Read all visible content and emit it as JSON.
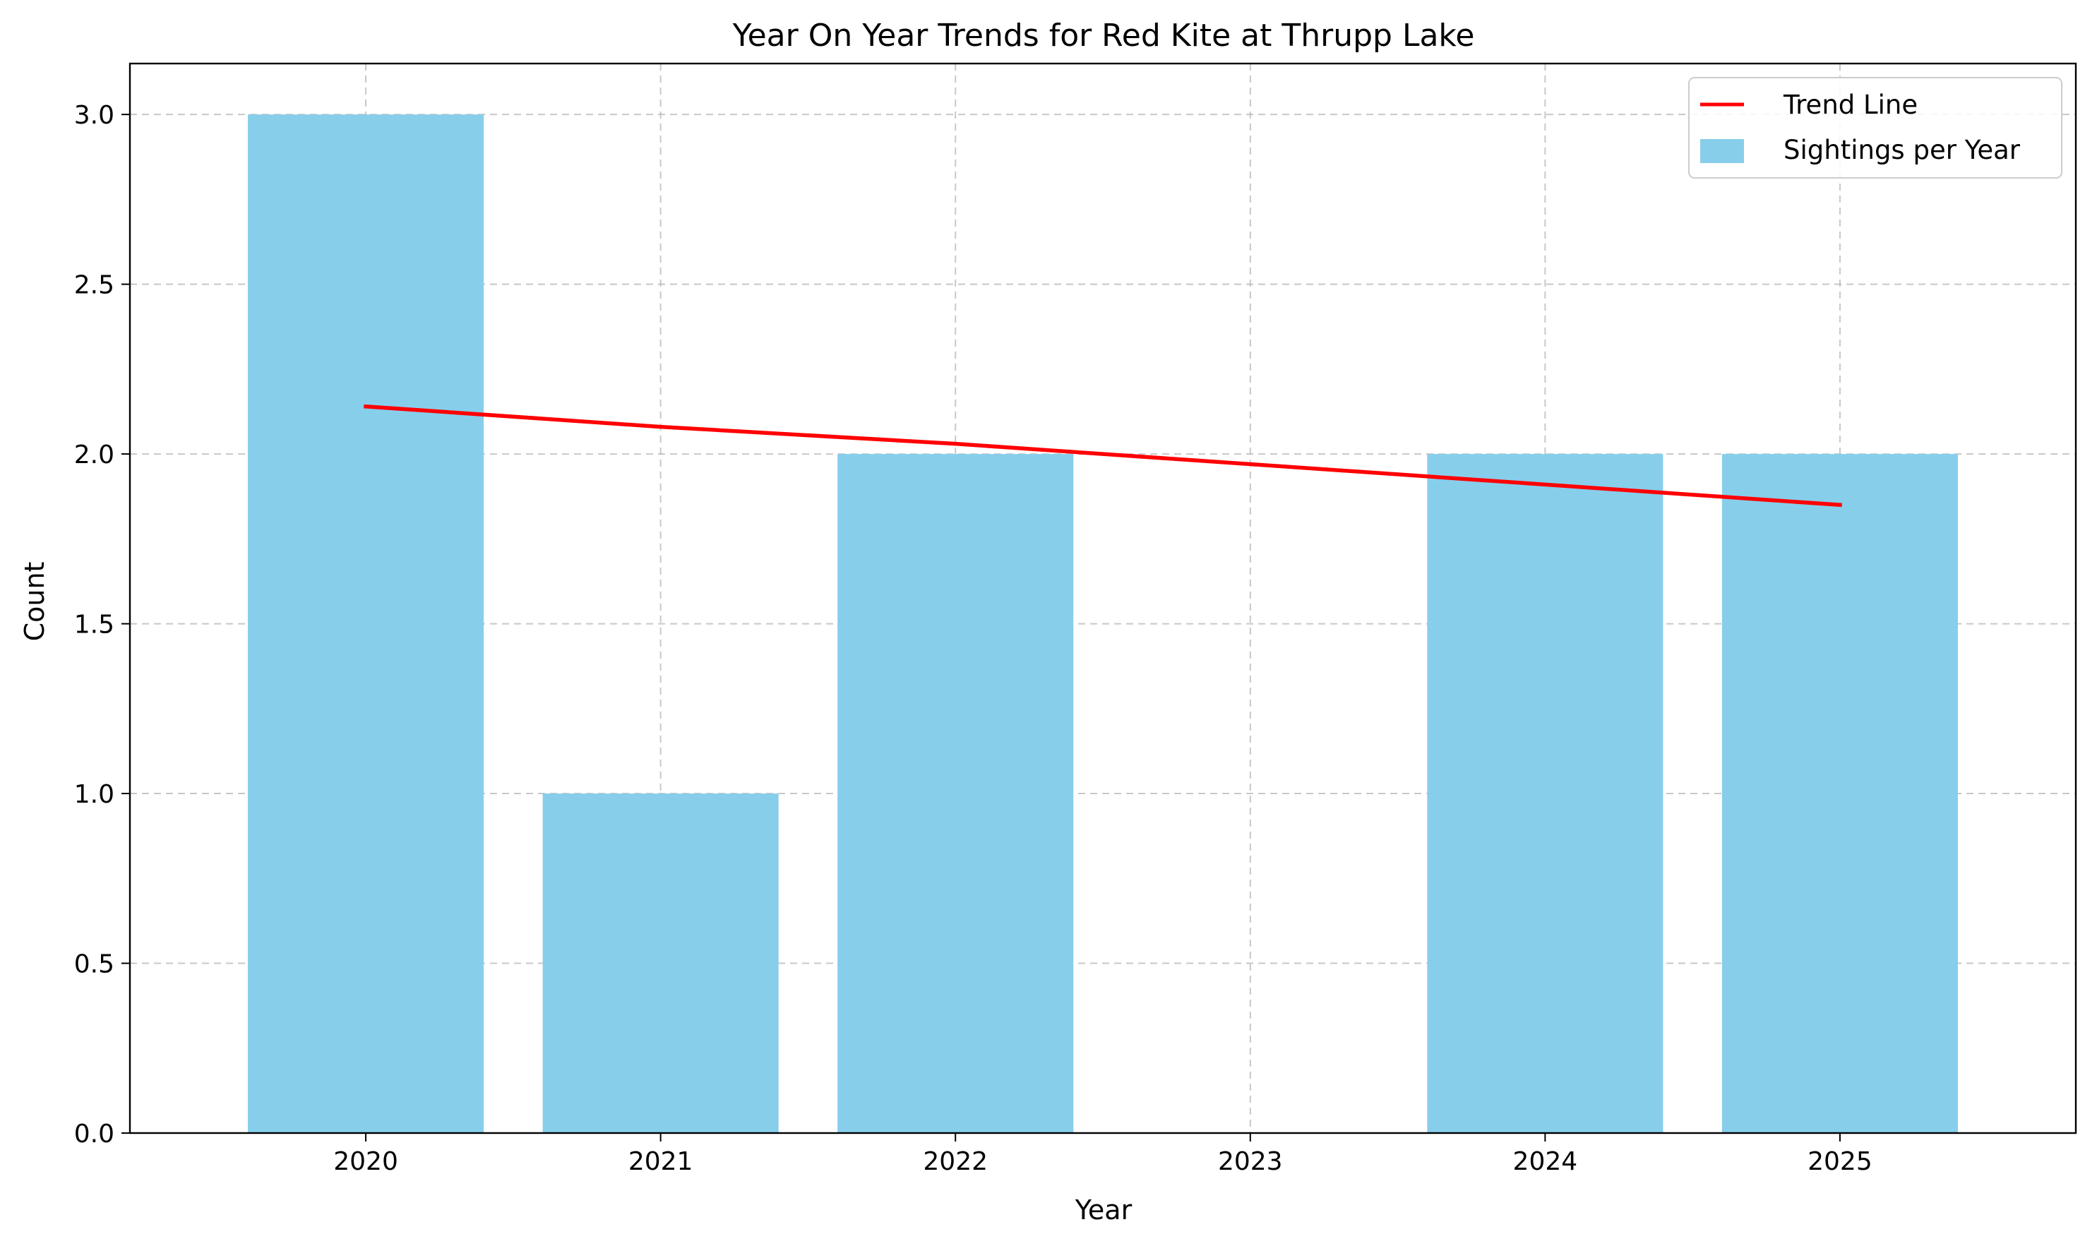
{
  "chart_data": {
    "type": "bar",
    "title": "Year On Year Trends for Red Kite at Thrupp Lake",
    "xlabel": "Year",
    "ylabel": "Count",
    "categories": [
      "2020",
      "2021",
      "2022",
      "2023",
      "2024",
      "2025"
    ],
    "ylim": [
      0,
      3.15
    ],
    "yticks": [
      "0.0",
      "0.5",
      "1.0",
      "1.5",
      "2.0",
      "2.5",
      "3.0"
    ],
    "grid": true,
    "legend_position": "top-right",
    "series": [
      {
        "name": "Sightings per Year",
        "type": "bar",
        "color": "#87ceeb",
        "values": [
          3,
          1,
          2,
          0,
          2,
          2
        ]
      },
      {
        "name": "Trend Line",
        "type": "line",
        "color": "#ff0000",
        "values": [
          2.14,
          2.08,
          2.03,
          1.97,
          1.91,
          1.85
        ]
      }
    ]
  }
}
